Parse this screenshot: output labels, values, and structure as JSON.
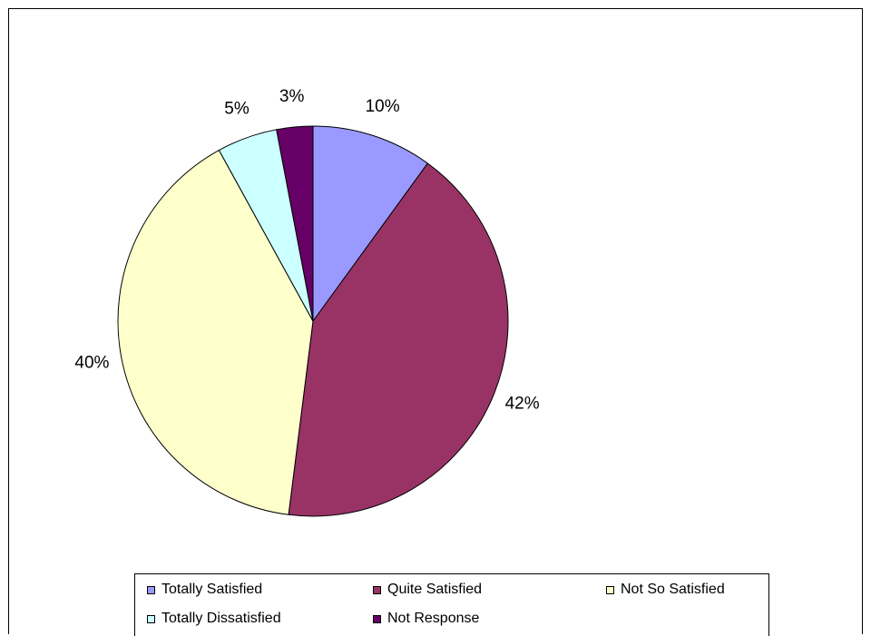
{
  "chart_data": {
    "type": "pie",
    "title": "",
    "slices": [
      {
        "name": "Totally Satisfied",
        "value": 10,
        "label": "10%",
        "color": "#9999ff"
      },
      {
        "name": "Quite Satisfied",
        "value": 42,
        "label": "42%",
        "color": "#993366"
      },
      {
        "name": "Not So Satisfied",
        "value": 40,
        "label": "40%",
        "color": "#ffffcc"
      },
      {
        "name": "Totally Dissatisfied",
        "value": 5,
        "label": "5%",
        "color": "#ccffff"
      },
      {
        "name": "Not Response",
        "value": 3,
        "label": "3%",
        "color": "#660066"
      }
    ],
    "legend": {
      "placement": "bottom"
    }
  }
}
